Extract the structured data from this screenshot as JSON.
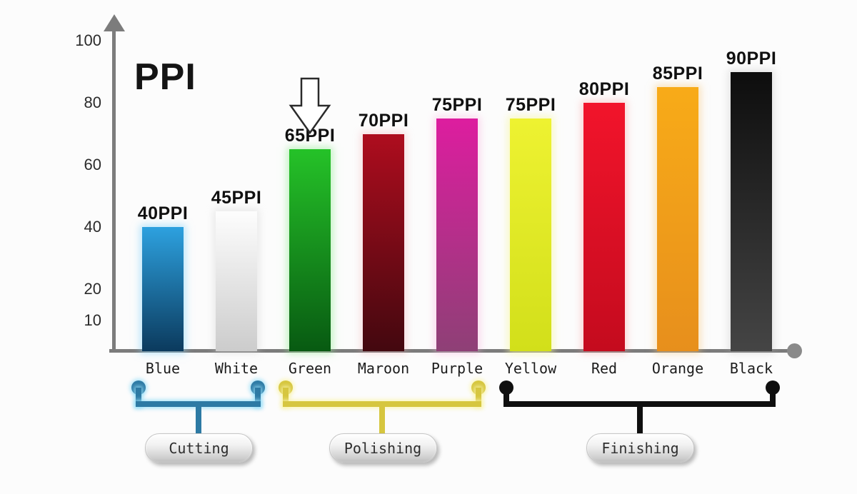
{
  "page": {
    "background": "#fcfcfc",
    "axis_color": "#7c7c7c",
    "axis_end_dot_color": "#8a8a8a"
  },
  "chart_data": {
    "type": "bar",
    "title": "PPI",
    "ylabel": "PPI",
    "xlabel": "",
    "categories": [
      "Blue",
      "White",
      "Green",
      "Maroon",
      "Purple",
      "Yellow",
      "Red",
      "Orange",
      "Black"
    ],
    "values": [
      40,
      45,
      65,
      70,
      75,
      75,
      80,
      85,
      90
    ],
    "bar_labels": [
      "40PPI",
      "45PPI",
      "65PPI",
      "70PPI",
      "75PPI",
      "75PPI",
      "80PPI",
      "85PPI",
      "90PPI"
    ],
    "yticks": [
      10,
      20,
      40,
      60,
      80,
      100
    ],
    "ylim": [
      0,
      105
    ],
    "grid": false,
    "legend": "none",
    "bar_colors": [
      {
        "top": "#2da1df",
        "bottom": "#0b3a5d",
        "glow": "rgba(130,210,250,0.55)"
      },
      {
        "top": "#fdfdfd",
        "bottom": "#cccccc",
        "glow": "rgba(205,205,205,0.40)"
      },
      {
        "top": "#25c228",
        "bottom": "#085a12",
        "glow": "rgba(140,235,140,0.55)"
      },
      {
        "top": "#ae0d1e",
        "bottom": "#43080f",
        "glow": "rgba(240,160,170,0.35)"
      },
      {
        "top": "#dd1d9f",
        "bottom": "#8e4076",
        "glow": "rgba(250,170,220,0.45)"
      },
      {
        "top": "#eef231",
        "bottom": "#d2df1a",
        "glow": "rgba(247,247,160,0.65)"
      },
      {
        "top": "#f2142b",
        "bottom": "#c40b1e",
        "glow": "rgba(250,150,150,0.40)"
      },
      {
        "top": "#f8ab18",
        "bottom": "#e78f1c",
        "glow": "rgba(250,200,120,0.50)"
      },
      {
        "top": "#0d0d0d",
        "bottom": "#454545",
        "glow": "rgba(170,170,170,0.30)"
      }
    ],
    "annotation": {
      "shape": "hollow-down-arrow",
      "points_to": "Green"
    },
    "groups": [
      {
        "label": "Cutting",
        "from": "Blue",
        "to": "White",
        "color": "#2d7aa4",
        "glow": "rgba(150,222,248,0.85)"
      },
      {
        "label": "Polishing",
        "from": "Green",
        "to": "Purple",
        "color": "#d6c63f",
        "glow": "rgba(250,244,170,0.85)"
      },
      {
        "label": "Finishing",
        "from": "Yellow",
        "to": "Black",
        "color": "#0f0f0f",
        "glow": "rgba(0,0,0,0)"
      }
    ]
  }
}
